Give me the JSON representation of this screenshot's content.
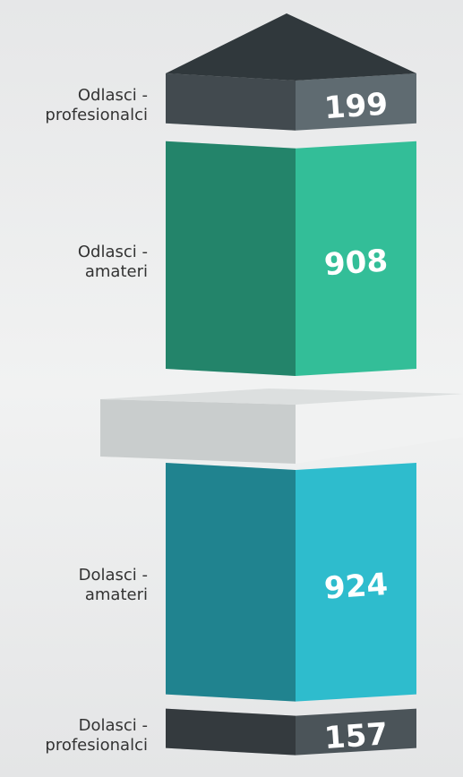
{
  "chart_data": {
    "type": "block-stack",
    "categories": [
      "Odlasci - profesionalci",
      "Odlasci - amateri",
      "Dolasci - amateri",
      "Dolasci - profesionalci"
    ],
    "values": [
      199,
      908,
      924,
      157
    ],
    "colors": [
      "#5f6b71",
      "#33be98",
      "#2ebccd",
      "#4b5459"
    ]
  }
}
